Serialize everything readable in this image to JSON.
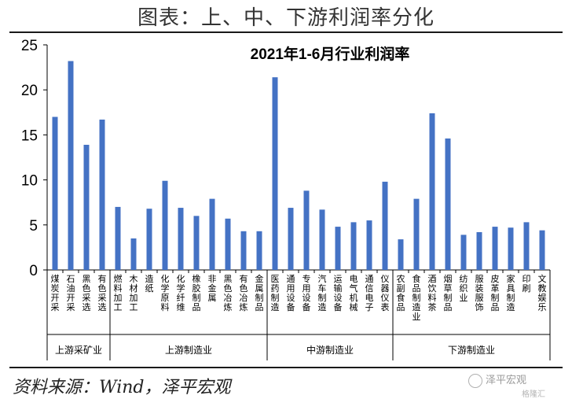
{
  "figure_title": "图表：上、中、下游利润率分化",
  "source": "资料来源：Wind，泽平宏观",
  "watermark": "泽平宏观",
  "watermark_sub": "格隆汇",
  "colors": {
    "bar": "#4472c4",
    "axis": "#000000",
    "text": "#000000"
  },
  "chart_data": {
    "type": "bar",
    "title": "2021年1-6月行业利润率",
    "xlabel": "",
    "ylabel": "",
    "ylim": [
      0,
      25
    ],
    "yticks": [
      0,
      5,
      10,
      15,
      20,
      25
    ],
    "grid": false,
    "categories": [
      "煤炭开采",
      "石油开采",
      "黑色采选",
      "有色采选",
      "燃料加工",
      "木材加工",
      "造纸",
      "化学原料",
      "化学纤维",
      "橡胶制品",
      "非金属",
      "黑色冶炼",
      "有色冶炼",
      "金属制品",
      "医药制造",
      "通用设备",
      "专用设备",
      "汽车制造",
      "运输设备",
      "电气机械",
      "通信电子",
      "仪器仪表",
      "农副食品",
      "食品制造业",
      "酒饮料茶",
      "烟草制品",
      "纺织业",
      "服装服饰",
      "皮革制品",
      "家具制造",
      "印刷",
      "文教娱乐"
    ],
    "values": [
      17.0,
      23.2,
      13.9,
      16.7,
      7.0,
      3.5,
      6.8,
      9.9,
      6.9,
      6.0,
      7.9,
      5.7,
      4.3,
      4.3,
      21.4,
      6.9,
      8.8,
      6.7,
      4.8,
      5.3,
      5.5,
      9.8,
      3.4,
      7.9,
      17.4,
      14.6,
      3.9,
      4.2,
      4.8,
      4.7,
      5.3,
      4.4
    ],
    "groups": [
      {
        "label": "上游采矿业",
        "start": 0,
        "end": 3
      },
      {
        "label": "上游制造业",
        "start": 4,
        "end": 13
      },
      {
        "label": "中游制造业",
        "start": 14,
        "end": 21
      },
      {
        "label": "下游制造业",
        "start": 22,
        "end": 31
      }
    ]
  }
}
